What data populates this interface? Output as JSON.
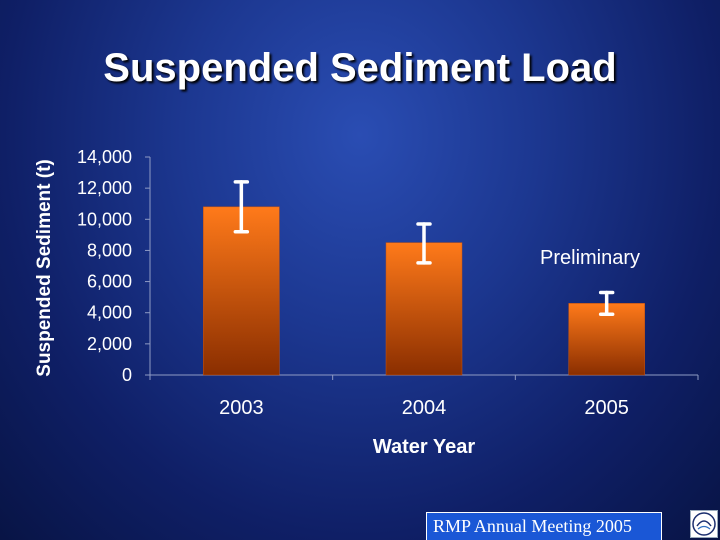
{
  "slide": {
    "title": "Suspended Sediment Load",
    "note": "Preliminary",
    "footer": "RMP Annual Meeting 2005",
    "logo_icon": "sfei-logo"
  },
  "colors": {
    "bar_top": "#ff7a1a",
    "bar_bottom": "#8a2e00",
    "error_bar": "#ffffff",
    "axis_text": "#ffffff",
    "footer_bg": "#1a57d6"
  },
  "chart_data": {
    "type": "bar",
    "title": "",
    "xlabel": "Water Year",
    "ylabel": "Suspended Sediment (t)",
    "categories": [
      "2003",
      "2004",
      "2005"
    ],
    "values": [
      10800,
      8500,
      4600
    ],
    "error_low": [
      9200,
      7200,
      3900
    ],
    "error_high": [
      12400,
      9700,
      5300
    ],
    "ylim": [
      0,
      14000
    ],
    "yticks": [
      0,
      2000,
      4000,
      6000,
      8000,
      10000,
      12000,
      14000
    ],
    "ytick_labels": [
      "0",
      "2,000",
      "4,000",
      "6,000",
      "8,000",
      "10,000",
      "12,000",
      "14,000"
    ],
    "grid": false,
    "legend": "none"
  }
}
